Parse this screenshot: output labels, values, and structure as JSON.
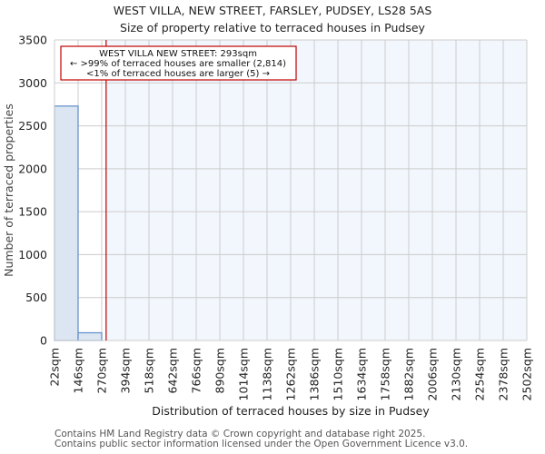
{
  "title": "WEST VILLA, NEW STREET, FARSLEY, PUDSEY, LS28 5AS",
  "subtitle": "Size of property relative to terraced houses in Pudsey",
  "annotation": {
    "line1": "WEST VILLA NEW STREET: 293sqm",
    "line2": "← >99% of terraced houses are smaller (2,814)",
    "line3": "<1% of terraced houses are larger (5) →"
  },
  "footer": {
    "line1": "Contains HM Land Registry data © Crown copyright and database right 2025.",
    "line2": "Contains public sector information licensed under the Open Government Licence v3.0."
  },
  "colors": {
    "bar_fill": "#dce6f2",
    "bar_edge": "#5b8cc8",
    "marker": "#c00000",
    "highlight_bg": "#f2f6fd",
    "grid": "#cccccc"
  },
  "chart_data": {
    "type": "bar",
    "title": "WEST VILLA, NEW STREET, FARSLEY, PUDSEY, LS28 5AS",
    "subtitle": "Size of property relative to terraced houses in Pudsey",
    "xlabel": "Distribution of terraced houses by size in Pudsey",
    "ylabel": "Number of terraced properties",
    "categories": [
      "22sqm",
      "146sqm",
      "270sqm",
      "394sqm",
      "518sqm",
      "642sqm",
      "766sqm",
      "890sqm",
      "1014sqm",
      "1138sqm",
      "1262sqm",
      "1386sqm",
      "1510sqm",
      "1634sqm",
      "1758sqm",
      "1882sqm",
      "2006sqm",
      "2130sqm",
      "2254sqm",
      "2378sqm",
      "2502sqm"
    ],
    "bin_edges": [
      22,
      146,
      270,
      394,
      518,
      642,
      766,
      890,
      1014,
      1138,
      1262,
      1386,
      1510,
      1634,
      1758,
      1882,
      2006,
      2130,
      2254,
      2378,
      2502
    ],
    "values": [
      2730,
      90,
      0,
      0,
      0,
      0,
      0,
      0,
      0,
      0,
      0,
      0,
      0,
      0,
      0,
      0,
      0,
      0,
      0,
      0
    ],
    "yticks": [
      0,
      500,
      1000,
      1500,
      2000,
      2500,
      3000,
      3500
    ],
    "ylim": [
      0,
      3500
    ],
    "xlim": [
      22,
      2502
    ],
    "marker": {
      "value": 293,
      "label": "WEST VILLA NEW STREET: 293sqm"
    },
    "grid": true
  }
}
